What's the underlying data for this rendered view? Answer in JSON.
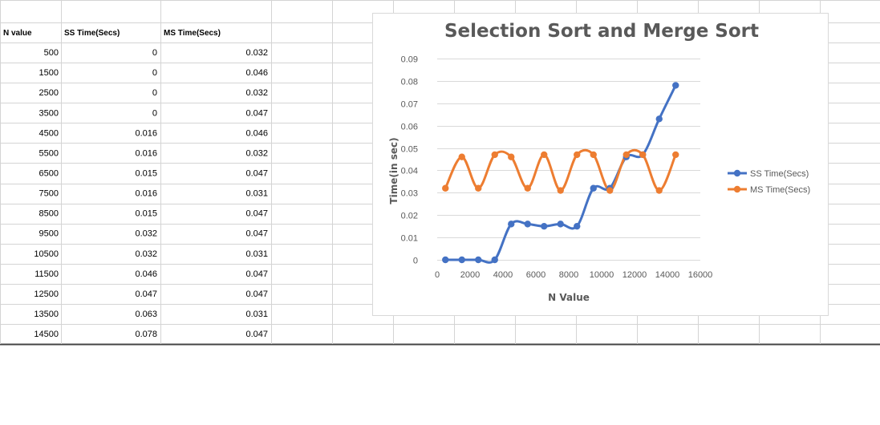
{
  "sheet": {
    "headers": [
      "N value",
      "SS Time(Secs)",
      "MS Time(Secs)"
    ],
    "rows": [
      [
        "500",
        "0",
        "0.032"
      ],
      [
        "1500",
        "0",
        "0.046"
      ],
      [
        "2500",
        "0",
        "0.032"
      ],
      [
        "3500",
        "0",
        "0.047"
      ],
      [
        "4500",
        "0.016",
        "0.046"
      ],
      [
        "5500",
        "0.016",
        "0.032"
      ],
      [
        "6500",
        "0.015",
        "0.047"
      ],
      [
        "7500",
        "0.016",
        "0.031"
      ],
      [
        "8500",
        "0.015",
        "0.047"
      ],
      [
        "9500",
        "0.032",
        "0.047"
      ],
      [
        "10500",
        "0.032",
        "0.031"
      ],
      [
        "11500",
        "0.046",
        "0.047"
      ],
      [
        "12500",
        "0.047",
        "0.047"
      ],
      [
        "13500",
        "0.063",
        "0.031"
      ],
      [
        "14500",
        "0.078",
        "0.047"
      ]
    ]
  },
  "chart_data": {
    "type": "line",
    "title": "Selection Sort and Merge Sort",
    "xlabel": "N Value",
    "ylabel": "Time(in sec)",
    "x": [
      500,
      1500,
      2500,
      3500,
      4500,
      5500,
      6500,
      7500,
      8500,
      9500,
      10500,
      11500,
      12500,
      13500,
      14500
    ],
    "series": [
      {
        "name": "SS Time(Secs)",
        "color": "#4472c4",
        "values": [
          0,
          0,
          0,
          0,
          0.016,
          0.016,
          0.015,
          0.016,
          0.015,
          0.032,
          0.032,
          0.046,
          0.047,
          0.063,
          0.078
        ]
      },
      {
        "name": "MS Time(Secs)",
        "color": "#ed7d31",
        "values": [
          0.032,
          0.046,
          0.032,
          0.047,
          0.046,
          0.032,
          0.047,
          0.031,
          0.047,
          0.047,
          0.031,
          0.047,
          0.047,
          0.031,
          0.047
        ]
      }
    ],
    "xlim": [
      0,
      16000
    ],
    "ylim": [
      0,
      0.09
    ],
    "x_ticks": [
      "0",
      "2000",
      "4000",
      "6000",
      "8000",
      "10000",
      "12000",
      "14000",
      "16000"
    ],
    "y_ticks": [
      "0",
      "0.01",
      "0.02",
      "0.03",
      "0.04",
      "0.05",
      "0.06",
      "0.07",
      "0.08",
      "0.09"
    ],
    "smooth": true,
    "grid": true,
    "legend_position": "right"
  }
}
